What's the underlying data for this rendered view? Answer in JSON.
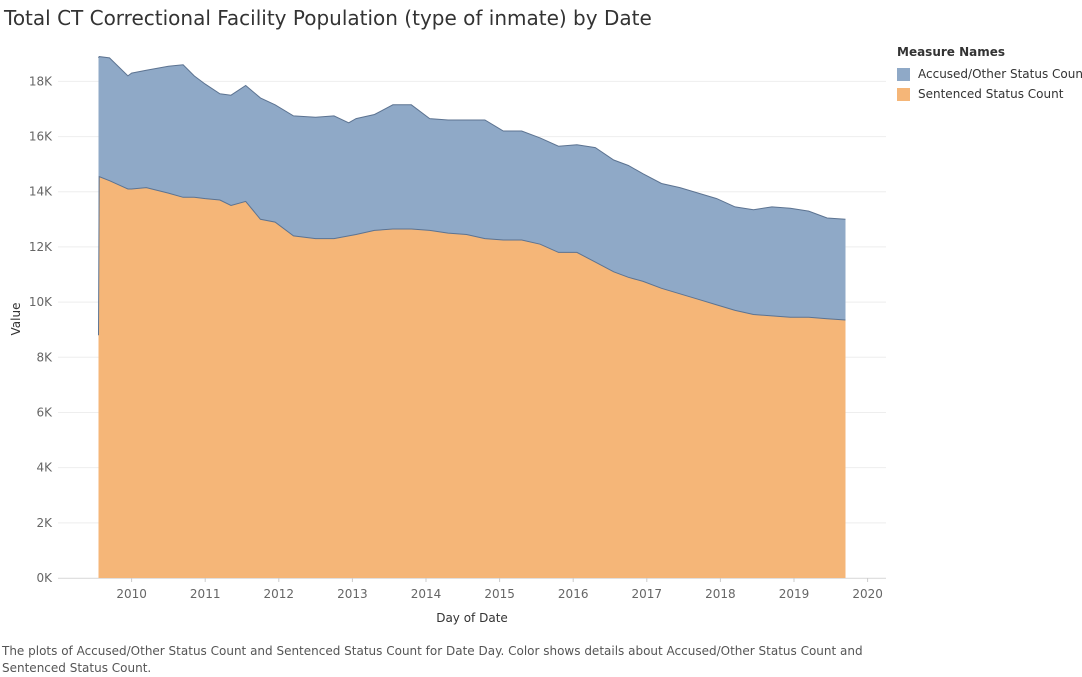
{
  "chart_data": {
    "type": "area",
    "stacked": true,
    "title": "Total CT Correctional Facility Population (type of inmate) by Date",
    "xlabel": "Day of Date",
    "ylabel": "Value",
    "xlim": [
      2009.0,
      2020.25
    ],
    "ylim": [
      0,
      19500
    ],
    "x_ticks": [
      "2010",
      "2011",
      "2012",
      "2013",
      "2014",
      "2015",
      "2016",
      "2017",
      "2018",
      "2019",
      "2020"
    ],
    "y_ticks": [
      "0K",
      "2K",
      "4K",
      "6K",
      "8K",
      "10K",
      "12K",
      "14K",
      "16K",
      "18K"
    ],
    "grid": "horizontal",
    "legend_title": "Measure Names",
    "legend_position": "top-right",
    "x": [
      2009.55,
      2009.56,
      2009.7,
      2009.95,
      2010.0,
      2010.2,
      2010.5,
      2010.7,
      2010.85,
      2011.0,
      2011.2,
      2011.35,
      2011.55,
      2011.75,
      2011.95,
      2012.2,
      2012.5,
      2012.75,
      2012.95,
      2013.05,
      2013.3,
      2013.55,
      2013.8,
      2014.05,
      2014.3,
      2014.55,
      2014.8,
      2015.05,
      2015.3,
      2015.55,
      2015.8,
      2016.05,
      2016.3,
      2016.55,
      2016.75,
      2016.95,
      2017.2,
      2017.45,
      2017.7,
      2017.95,
      2018.2,
      2018.45,
      2018.7,
      2018.95,
      2019.2,
      2019.45,
      2019.7
    ],
    "series": [
      {
        "name": "Sentenced Status Count",
        "color": "#F5B678",
        "values": [
          8800,
          14550,
          14400,
          14100,
          14100,
          14150,
          13950,
          13800,
          13800,
          13750,
          13700,
          13500,
          13650,
          13000,
          12900,
          12400,
          12300,
          12300,
          12400,
          12450,
          12600,
          12650,
          12650,
          12600,
          12500,
          12450,
          12300,
          12250,
          12250,
          12100,
          11800,
          11800,
          11450,
          11100,
          10900,
          10750,
          10500,
          10300,
          10100,
          9900,
          9700,
          9550,
          9500,
          9450,
          9450,
          9400,
          9350
        ]
      },
      {
        "name": "Accused/Other Status Count",
        "color": "#8FA9C7",
        "values": [
          10050,
          4350,
          4450,
          4100,
          4200,
          4250,
          4600,
          4800,
          4400,
          4150,
          3850,
          4000,
          4200,
          4400,
          4250,
          4350,
          4400,
          4450,
          4100,
          4200,
          4200,
          4500,
          4500,
          4050,
          4100,
          4150,
          4300,
          3950,
          3950,
          3850,
          3850,
          3900,
          4150,
          4050,
          4050,
          3900,
          3800,
          3850,
          3850,
          3850,
          3750,
          3800,
          3950,
          3950,
          3850,
          3650,
          3650
        ]
      }
    ]
  },
  "caption": "The plots of Accused/Other Status Count and Sentenced Status Count for Date Day.  Color shows details about Accused/Other Status Count and Sentenced Status Count."
}
